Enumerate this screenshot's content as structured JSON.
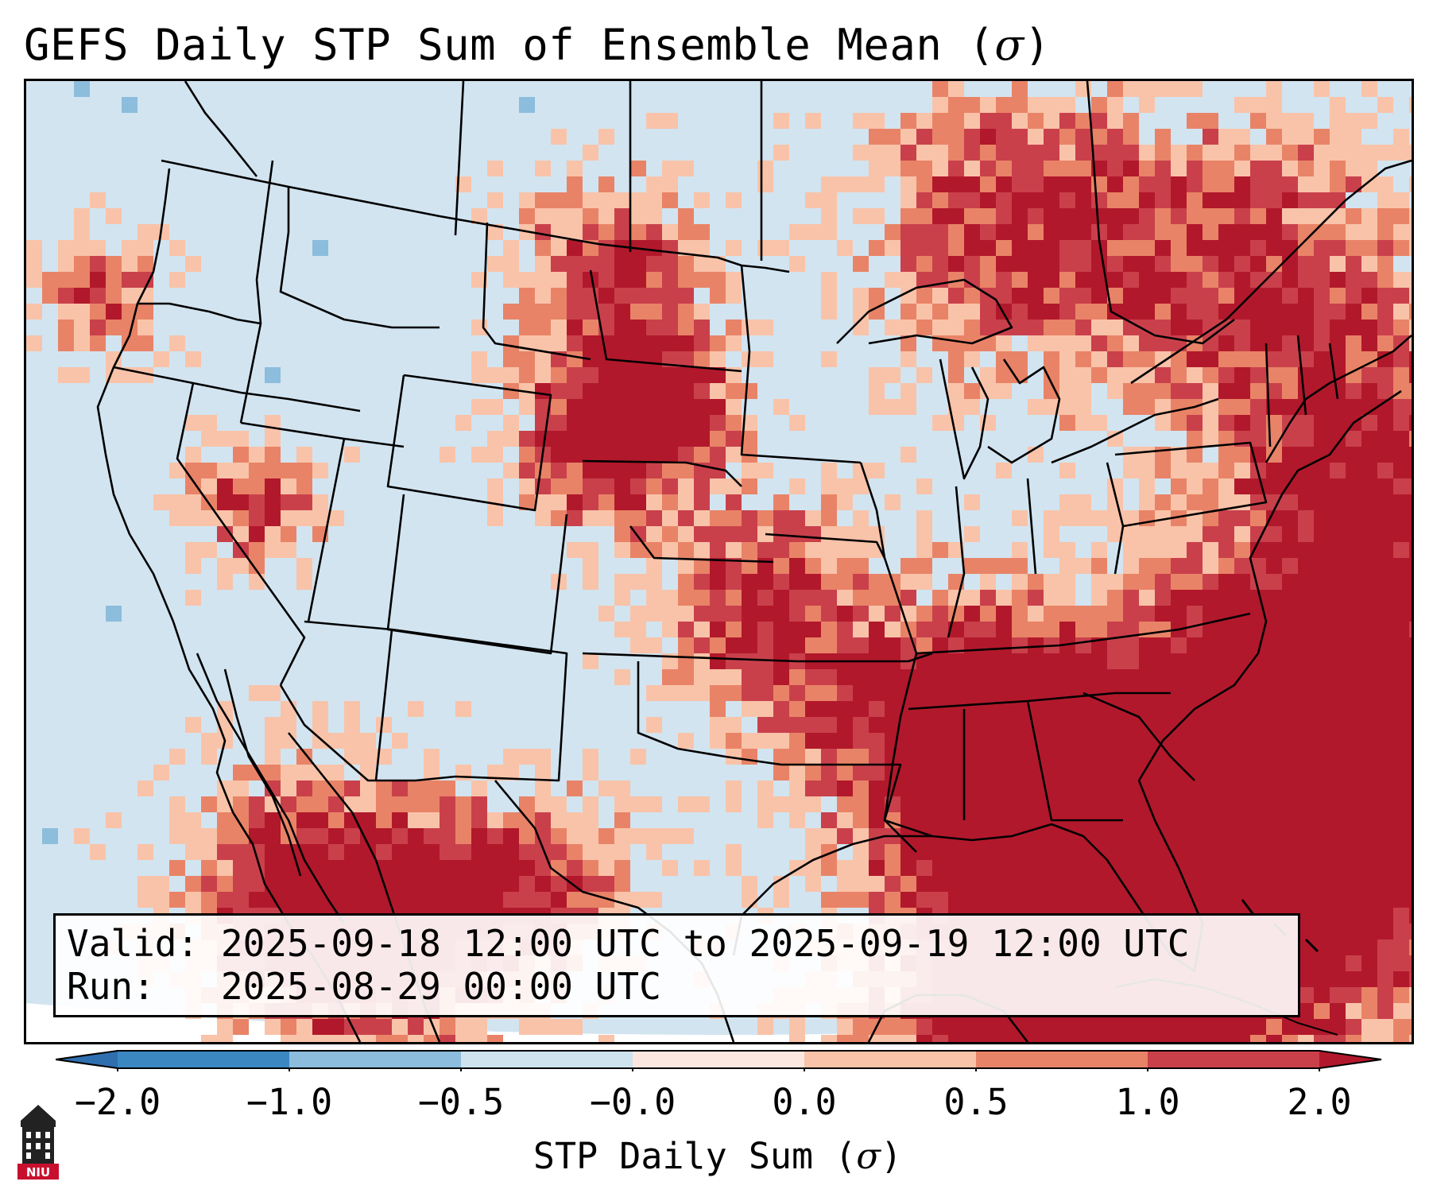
{
  "title": {
    "prefix": "GEFS Daily STP Sum of Ensemble Mean (",
    "symbol": "σ",
    "suffix": ")"
  },
  "info": {
    "valid_label": "Valid:",
    "valid_value": "2025-09-18 12:00 UTC to 2025-09-19 12:00 UTC",
    "run_label": "Run:",
    "run_value": "2025-08-29 00:00 UTC"
  },
  "colorbar": {
    "ticks": [
      "−2.0",
      "−1.0",
      "−0.5",
      "−0.0",
      "0.0",
      "0.5",
      "1.0",
      "2.0"
    ],
    "label_prefix": "STP Daily Sum (",
    "label_symbol": "σ",
    "label_suffix": ")",
    "colors": [
      "#3a87c2",
      "#8cbddc",
      "#cfe3ef",
      "#fbe7df",
      "#f9c3a9",
      "#e98367",
      "#c9404b"
    ],
    "under_color": "#2f6fb0",
    "over_color": "#b2182b"
  },
  "map": {
    "background_color": "#d2e4f0",
    "description_region": "Continental United States, southern Canada, Mexico, Gulf of Mexico and western Atlantic"
  },
  "logo": {
    "text": "NIU",
    "color": "#c8102e"
  }
}
